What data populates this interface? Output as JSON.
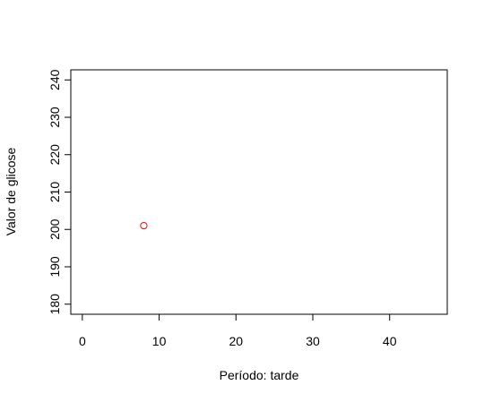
{
  "chart_data": {
    "type": "scatter",
    "title": "",
    "xlabel": "Período: tarde",
    "ylabel": "Valor de glicose",
    "xlim": [
      -1.5,
      47.5
    ],
    "ylim": [
      177.3,
      242.7
    ],
    "xticks": [
      0,
      10,
      20,
      30,
      40
    ],
    "yticks": [
      180,
      190,
      200,
      210,
      220,
      230,
      240
    ],
    "xtick_labels": [
      "0",
      "10",
      "20",
      "30",
      "40"
    ],
    "ytick_labels": [
      "180",
      "190",
      "200",
      "210",
      "220",
      "230",
      "240"
    ],
    "grid": false,
    "points": [
      {
        "x": 8,
        "y": 201
      }
    ],
    "point_color": "#ff0000",
    "marker": "open-circle"
  }
}
